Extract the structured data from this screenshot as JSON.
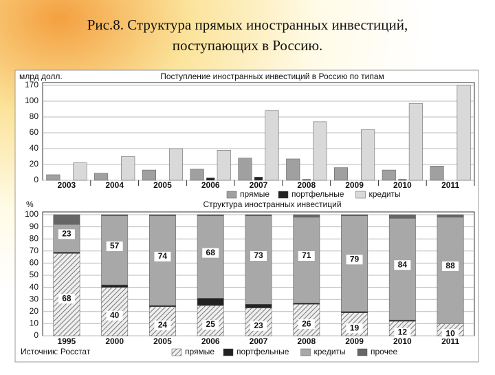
{
  "slide_title": [
    "Рис.8. Структура прямых иностранных инвестиций,",
    "поступающих в Россию."
  ],
  "source": "Источник: Росстат",
  "chart_data": [
    {
      "type": "bar",
      "title": "Поступление иностранных инвестиций в Россию по типам",
      "y_label": "млрд долл.",
      "categories": [
        "2003",
        "2004",
        "2005",
        "2006",
        "2007",
        "2008",
        "2009",
        "2010",
        "2011"
      ],
      "series": [
        {
          "name": "прямые",
          "color": "#a0a0a0",
          "values": [
            7,
            9,
            13,
            14,
            28,
            27,
            16,
            13,
            18
          ]
        },
        {
          "name": "портфельные",
          "color": "#222222",
          "values": [
            0,
            0,
            0,
            3,
            4,
            1,
            0,
            1,
            0
          ]
        },
        {
          "name": "кредиты",
          "color": "#d9d9d9",
          "values": [
            22,
            30,
            40,
            38,
            88,
            74,
            64,
            97,
            170
          ]
        }
      ],
      "ylim": [
        0,
        170
      ],
      "yticks": [
        0,
        20,
        40,
        60,
        80,
        100,
        170
      ],
      "axis_break": true,
      "grid": true,
      "legend": "bottom"
    },
    {
      "type": "stacked_bar",
      "title": "Структура иностранных инвестиций",
      "y_label": "%",
      "categories": [
        "1995",
        "2000",
        "2005",
        "2006",
        "2007",
        "2008",
        "2009",
        "2010",
        "2011"
      ],
      "series": [
        {
          "name": "прямые",
          "color": "#b0b0b0",
          "pattern": "hatch",
          "labeled": true,
          "values": [
            68,
            40,
            24,
            25,
            23,
            26,
            19,
            12,
            10
          ]
        },
        {
          "name": "портфельные",
          "color": "#222222",
          "values": [
            1,
            2,
            1,
            6,
            3,
            1,
            1,
            1,
            0
          ]
        },
        {
          "name": "кредиты",
          "color": "#a8a8a8",
          "labeled": true,
          "values": [
            23,
            57,
            74,
            68,
            73,
            71,
            79,
            84,
            88
          ]
        },
        {
          "name": "прочее",
          "color": "#666666",
          "values": [
            8,
            1,
            1,
            1,
            1,
            2,
            1,
            3,
            2
          ]
        }
      ],
      "ylim": [
        0,
        100
      ],
      "yticks": [
        0,
        10,
        20,
        30,
        40,
        50,
        60,
        70,
        80,
        90,
        100
      ],
      "grid": true,
      "legend": "bottom"
    }
  ]
}
